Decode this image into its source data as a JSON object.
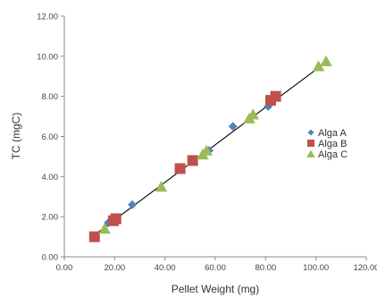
{
  "chart_data": {
    "type": "scatter",
    "xlabel": "Pellet Weight (mg)",
    "ylabel": "TC (mgC)",
    "xlim": [
      0,
      120
    ],
    "ylim": [
      0,
      12
    ],
    "x_ticks": [
      "0.00",
      "20.00",
      "40.00",
      "60.00",
      "80.00",
      "100.00",
      "120.00"
    ],
    "y_ticks": [
      "0.00",
      "2.00",
      "4.00",
      "6.00",
      "8.00",
      "10.00",
      "12.00"
    ],
    "grid": false,
    "legend_position": "right",
    "series": [
      {
        "name": "Alga A",
        "marker": "diamond",
        "color": "#4F81BD",
        "x": [
          17.5,
          27.0,
          57.5,
          67.0,
          81.0
        ],
        "y": [
          1.7,
          2.6,
          5.3,
          6.5,
          7.5
        ]
      },
      {
        "name": "Alga B",
        "marker": "square",
        "color": "#C0504D",
        "x": [
          12.0,
          19.5,
          20.5,
          46.0,
          51.0,
          82.0,
          84.0
        ],
        "y": [
          1.0,
          1.8,
          1.9,
          4.4,
          4.8,
          7.8,
          8.0
        ]
      },
      {
        "name": "Alga C",
        "marker": "triangle",
        "color": "#9BBB59",
        "x": [
          16.0,
          38.5,
          55.0,
          56.5,
          73.5,
          75.0,
          101.0,
          104.0
        ],
        "y": [
          1.4,
          3.5,
          5.1,
          5.3,
          6.9,
          7.1,
          9.5,
          9.75
        ]
      }
    ],
    "trendline": {
      "color": "#000000",
      "x": [
        11.0,
        104.5
      ],
      "y": [
        1.0,
        9.75
      ]
    }
  }
}
